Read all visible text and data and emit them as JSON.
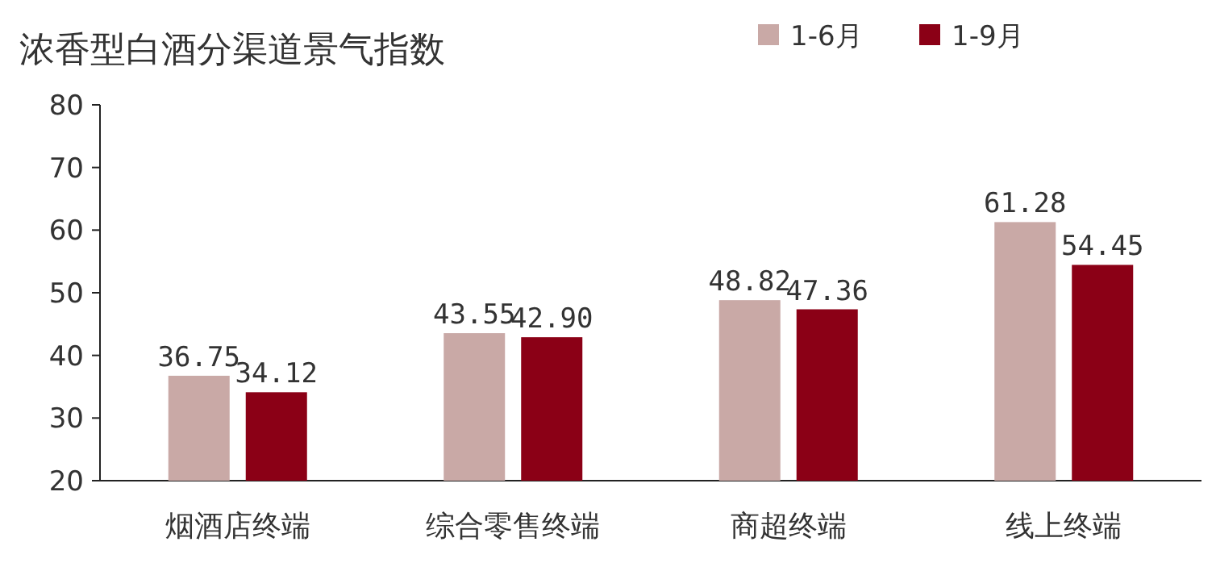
{
  "chart_data": {
    "type": "bar",
    "title": "浓香型白酒分渠道景气指数",
    "categories": [
      "烟酒店终端",
      "综合零售终端",
      "商超终端",
      "线上终端"
    ],
    "series": [
      {
        "name": "1-6月",
        "color": "#c9a9a6",
        "values": [
          36.75,
          43.55,
          48.82,
          61.28
        ]
      },
      {
        "name": "1-9月",
        "color": "#8b0016",
        "values": [
          34.12,
          42.9,
          47.36,
          54.45
        ]
      }
    ],
    "value_labels": [
      [
        "36.75",
        "43.55",
        "48.82",
        "61.28"
      ],
      [
        "34.12",
        "42.90",
        "47.36",
        "54.45"
      ]
    ],
    "ylim": [
      20,
      80
    ],
    "yticks": [
      20,
      30,
      40,
      50,
      60,
      70,
      80
    ],
    "grid": false,
    "legend": "top right"
  }
}
